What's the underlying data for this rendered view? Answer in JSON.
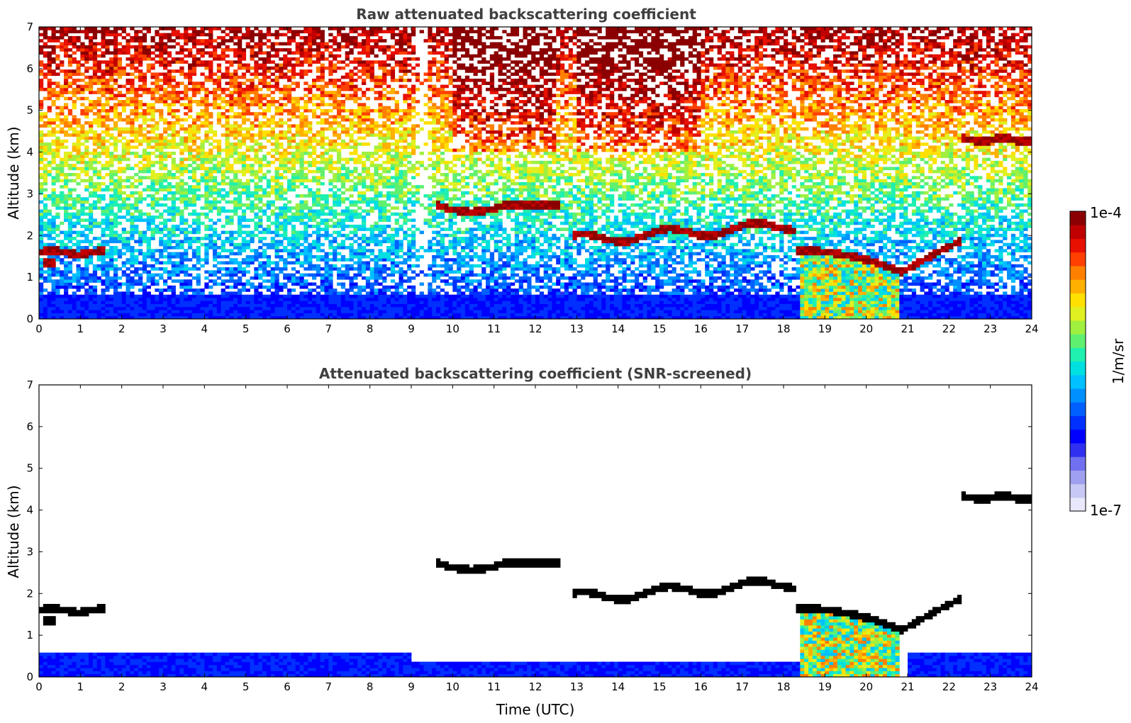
{
  "chart_data": [
    {
      "type": "heatmap",
      "title": "Raw attenuated backscattering coefficient",
      "xlabel": "",
      "ylabel": "Altitude (km)",
      "xlim": [
        0,
        24
      ],
      "ylim": [
        0,
        7
      ],
      "xticks": [
        "0",
        "1",
        "2",
        "3",
        "4",
        "5",
        "6",
        "7",
        "8",
        "9",
        "10",
        "11",
        "12",
        "13",
        "14",
        "15",
        "16",
        "17",
        "18",
        "19",
        "20",
        "21",
        "22",
        "23",
        "24"
      ],
      "yticks": [
        "0",
        "1",
        "2",
        "3",
        "4",
        "5",
        "6",
        "7"
      ],
      "screened": false,
      "cloud_layers": [
        {
          "x_start": 0.0,
          "x_end": 1.6,
          "altitude": 1.6
        },
        {
          "x_start": 0.1,
          "x_end": 0.4,
          "altitude": 1.35
        },
        {
          "x_start": 9.6,
          "x_end": 11.0,
          "altitude": 2.7
        },
        {
          "x_start": 11.0,
          "x_end": 12.6,
          "altitude": 2.7
        },
        {
          "x_start": 12.9,
          "x_end": 18.3,
          "altitude": 2.0
        },
        {
          "x_start": 18.3,
          "x_end": 20.8,
          "altitude": 1.45
        },
        {
          "x_start": 20.8,
          "x_end": 22.3,
          "altitude": 1.7
        },
        {
          "x_start": 22.3,
          "x_end": 24.0,
          "altitude": 4.3
        }
      ],
      "precipitation_span": [
        18.4,
        20.8
      ]
    },
    {
      "type": "heatmap",
      "title": "Attenuated backscattering coefficient (SNR-screened)",
      "xlabel": "Time (UTC)",
      "ylabel": "Altitude (km)",
      "xlim": [
        0,
        24
      ],
      "ylim": [
        0,
        7
      ],
      "xticks": [
        "0",
        "1",
        "2",
        "3",
        "4",
        "5",
        "6",
        "7",
        "8",
        "9",
        "10",
        "11",
        "12",
        "13",
        "14",
        "15",
        "16",
        "17",
        "18",
        "19",
        "20",
        "21",
        "22",
        "23",
        "24"
      ],
      "yticks": [
        "0",
        "1",
        "2",
        "3",
        "4",
        "5",
        "6",
        "7"
      ],
      "screened": true,
      "boundary_layer_top": 0.55
    }
  ],
  "colorbar": {
    "label": "1/m/sr",
    "max_label": "1e-4",
    "min_label": "1e-7",
    "colors": [
      "#e8e8fa",
      "#c8c8f4",
      "#a0a0f0",
      "#7070f0",
      "#3030f0",
      "#0000ff",
      "#0030ff",
      "#0060ff",
      "#0090ff",
      "#00c0ff",
      "#00e0e0",
      "#20f0b0",
      "#60f070",
      "#a0f040",
      "#e0f020",
      "#ffe000",
      "#ffb000",
      "#ff8000",
      "#ff4000",
      "#e81000",
      "#c00000",
      "#8b0000"
    ]
  }
}
